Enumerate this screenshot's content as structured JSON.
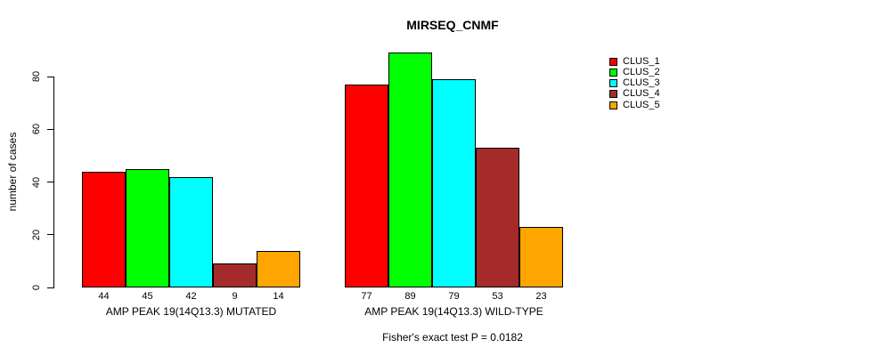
{
  "chart_data": {
    "type": "bar",
    "title": "MIRSEQ_CNMF",
    "ylabel": "number of cases",
    "yticks": [
      0,
      20,
      40,
      60,
      80
    ],
    "ylim": [
      0,
      89
    ],
    "grid": false,
    "legend_position": "right-outside",
    "categories": [
      "AMP PEAK 19(14Q13.3) MUTATED",
      "AMP PEAK 19(14Q13.3) WILD-TYPE"
    ],
    "series": [
      {
        "name": "CLUS_1",
        "color": "#FF0000",
        "values": [
          44,
          77
        ]
      },
      {
        "name": "CLUS_2",
        "color": "#00FF00",
        "values": [
          45,
          89
        ]
      },
      {
        "name": "CLUS_3",
        "color": "#00FFFF",
        "values": [
          42,
          79
        ]
      },
      {
        "name": "CLUS_4",
        "color": "#A52A2A",
        "values": [
          9,
          53
        ]
      },
      {
        "name": "CLUS_5",
        "color": "#FFA500",
        "values": [
          14,
          23
        ]
      }
    ],
    "groups": [
      {
        "label": "AMP PEAK 19(14Q13.3) MUTATED",
        "values": [
          44,
          45,
          42,
          9,
          14
        ]
      },
      {
        "label": "AMP PEAK 19(14Q13.3) WILD-TYPE",
        "values": [
          77,
          89,
          79,
          53,
          23
        ]
      }
    ],
    "bar_value_labels_shown": true,
    "annotation": "Fisher's exact test P = 0.0182"
  },
  "legend": {
    "items": [
      {
        "label": "CLUS_1",
        "color": "#FF0000"
      },
      {
        "label": "CLUS_2",
        "color": "#00FF00"
      },
      {
        "label": "CLUS_3",
        "color": "#00FFFF"
      },
      {
        "label": "CLUS_4",
        "color": "#A52A2A"
      },
      {
        "label": "CLUS_5",
        "color": "#FFA500"
      }
    ]
  },
  "colors": {
    "background": "#FFFFFF",
    "axis": "#000000",
    "bar_border": "#000000",
    "text": "#000000"
  }
}
